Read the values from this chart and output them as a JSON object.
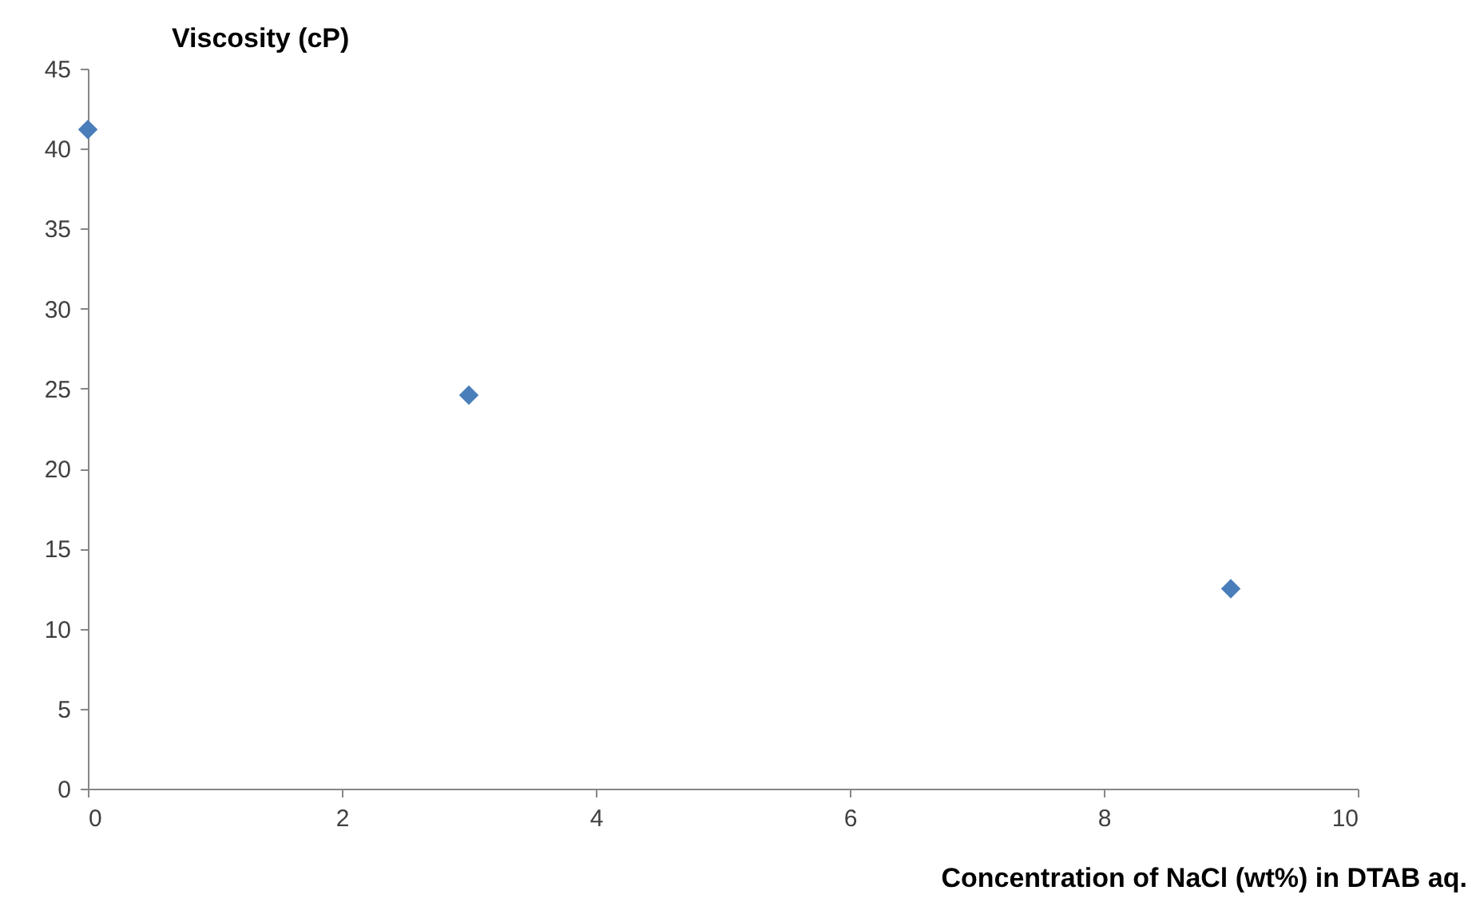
{
  "chart_data": {
    "type": "scatter",
    "xlabel": "Concentration of NaCl (wt%) in DTAB aq.",
    "ylabel": "Viscosity (cP)",
    "x": [
      0,
      3,
      9
    ],
    "series": [
      {
        "color": "#4a7ebb",
        "values": [
          41.2,
          24.6,
          12.5
        ]
      }
    ],
    "xlim": [
      0,
      10
    ],
    "xticks": [
      0,
      2,
      4,
      6,
      8,
      10
    ],
    "ylim": [
      0,
      45
    ],
    "yticks": [
      0,
      5,
      10,
      15,
      20,
      25,
      30,
      35,
      40,
      45
    ],
    "grid": false,
    "marker": "diamond"
  }
}
